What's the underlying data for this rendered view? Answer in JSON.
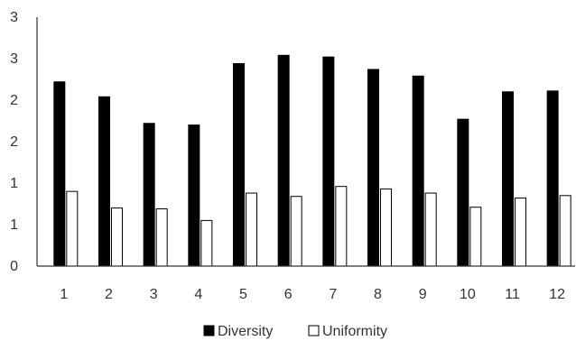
{
  "chart_data": {
    "type": "bar",
    "categories": [
      "1",
      "2",
      "3",
      "4",
      "5",
      "6",
      "7",
      "8",
      "9",
      "10",
      "11",
      "12"
    ],
    "series": [
      {
        "name": "Diversity",
        "color": "#000000",
        "values": [
          2.22,
          2.04,
          1.72,
          1.7,
          2.44,
          2.54,
          2.52,
          2.37,
          2.29,
          1.77,
          2.1,
          2.11
        ]
      },
      {
        "name": "Uniformity",
        "color": "#ffffff",
        "values": [
          0.9,
          0.7,
          0.69,
          0.55,
          0.88,
          0.84,
          0.96,
          0.93,
          0.88,
          0.71,
          0.82,
          0.85
        ]
      }
    ],
    "y_tick_labels": [
      "0",
      "1",
      "1",
      "2",
      "2",
      "3",
      "3"
    ],
    "ylim": [
      0,
      3
    ],
    "ytick_step": 0.5,
    "grid": false,
    "legend_position": "bottom"
  }
}
